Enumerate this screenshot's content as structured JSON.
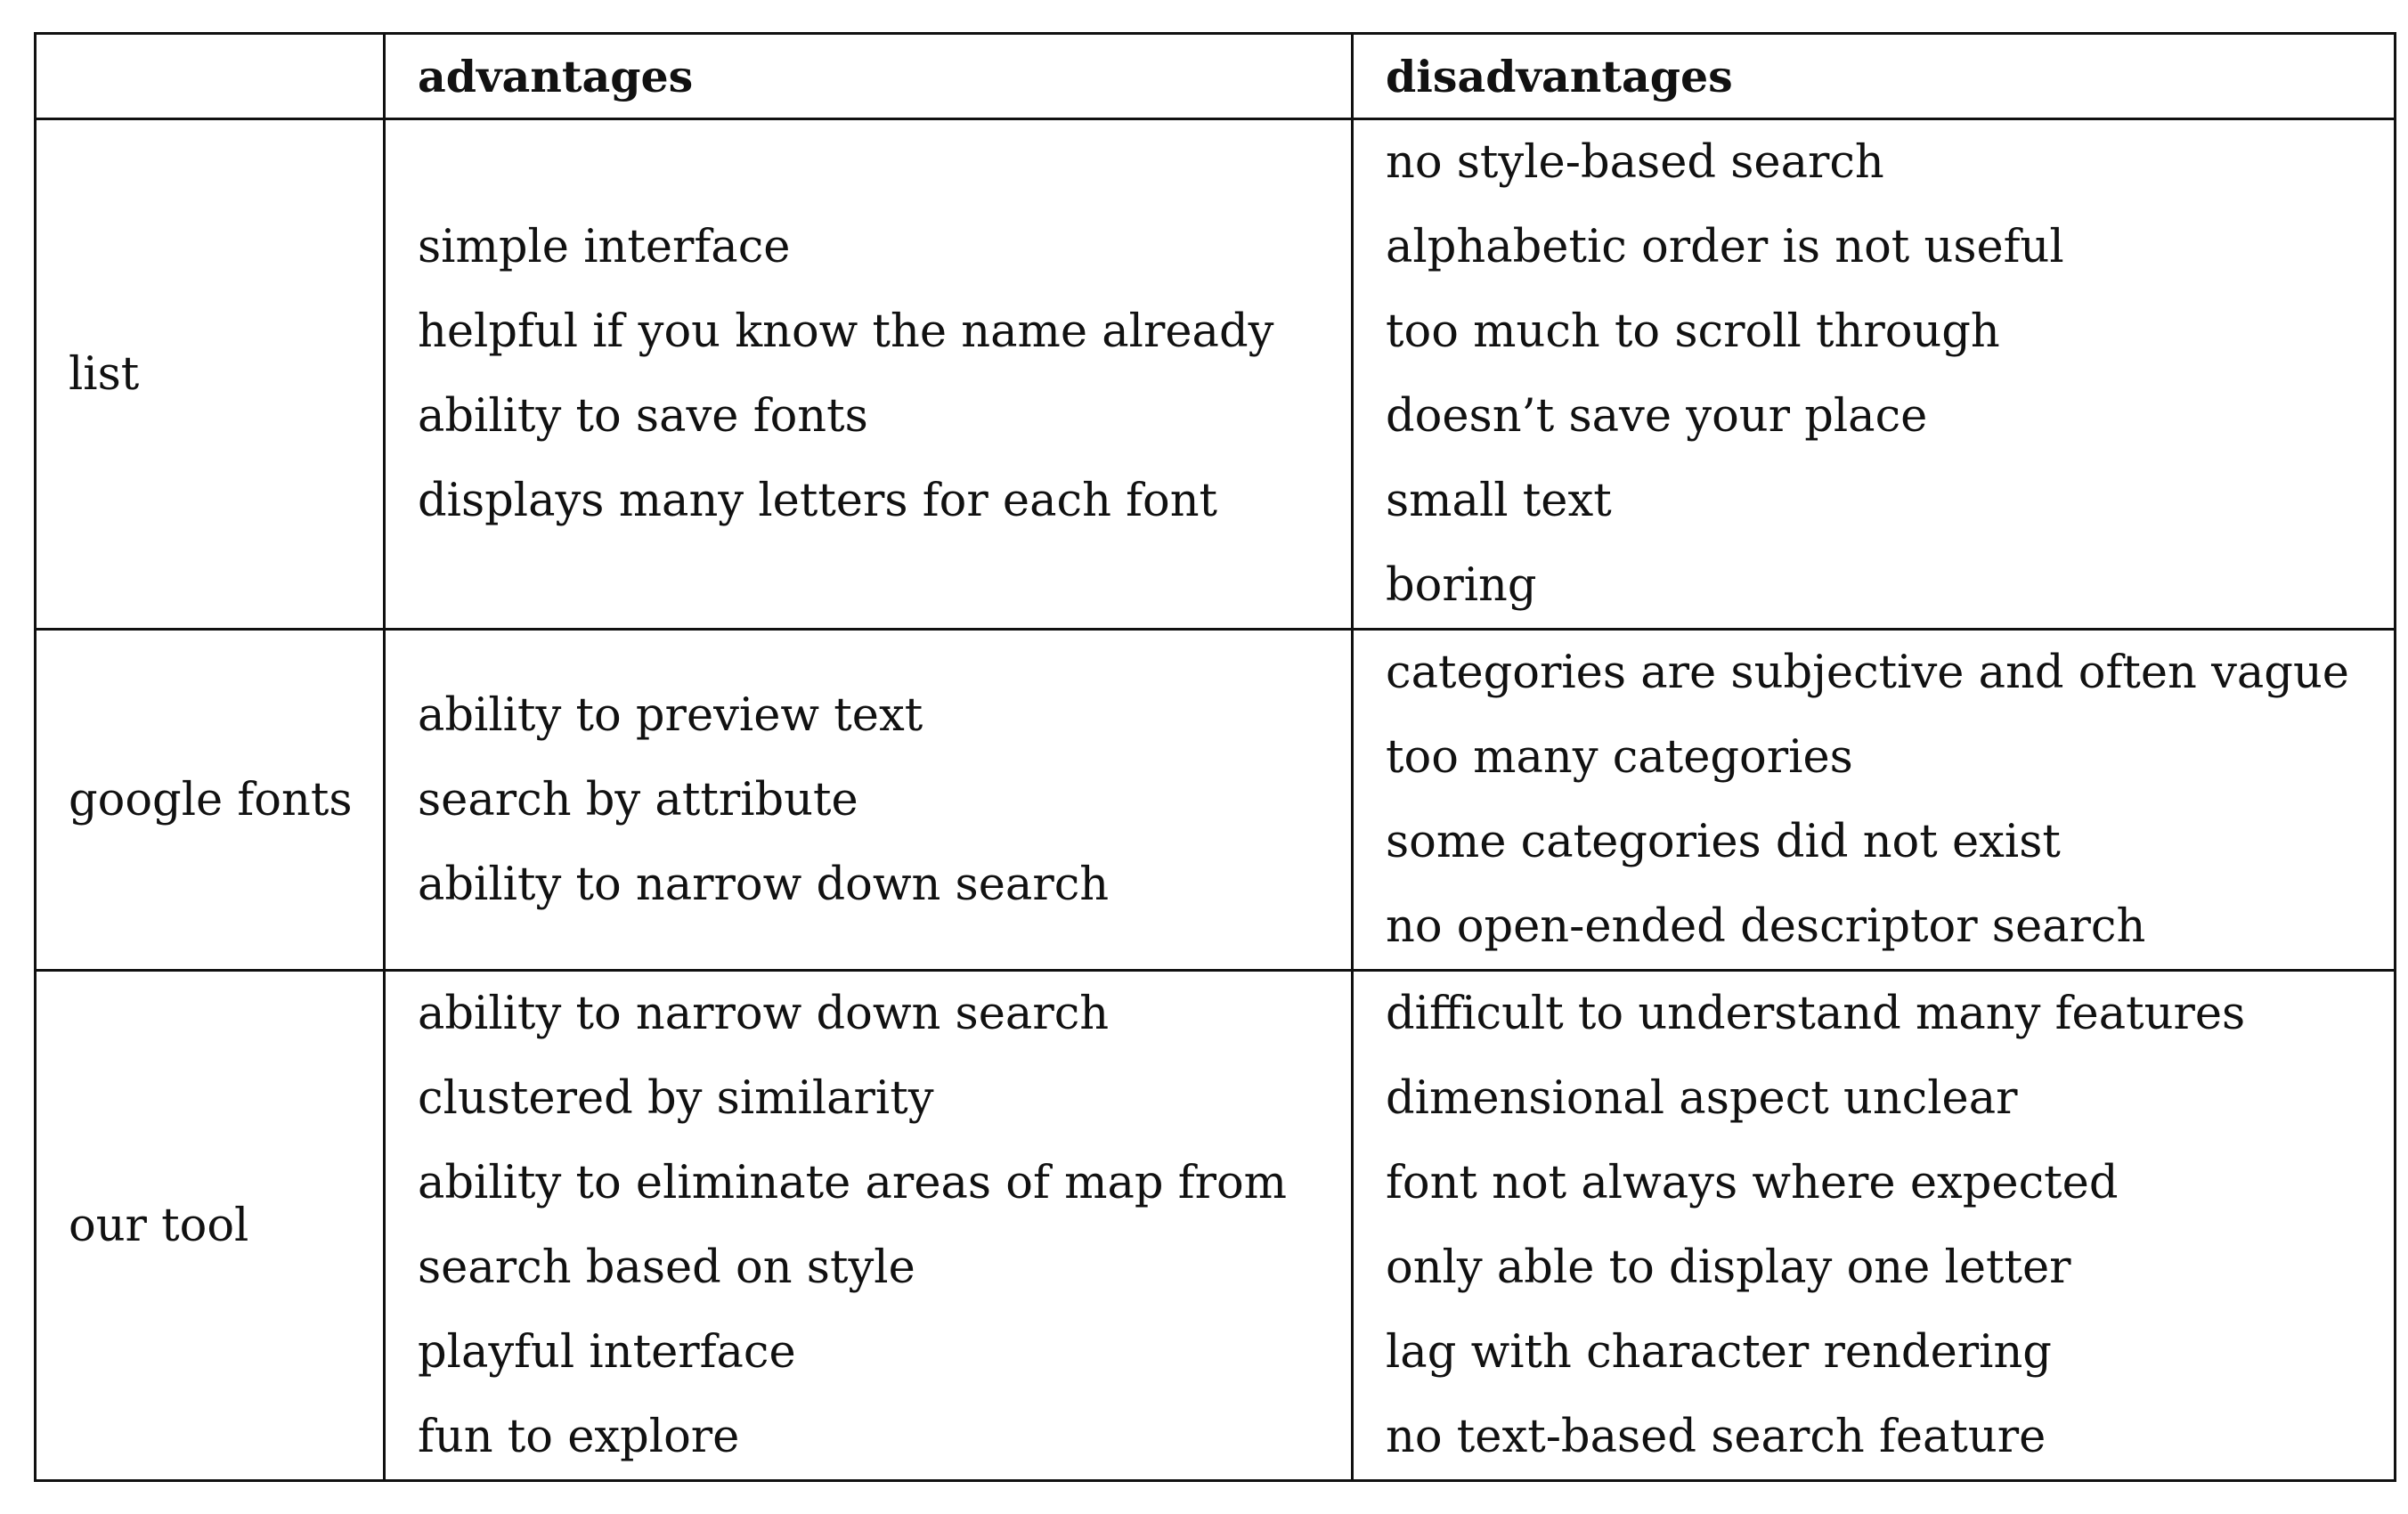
{
  "table": {
    "headers": [
      "",
      "advantages",
      "disadvantages"
    ],
    "rows": [
      {
        "label": "list",
        "advantages": [
          "simple interface",
          "helpful if you know the name already",
          "ability to save fonts",
          "displays many letters for each font"
        ],
        "disadvantages": [
          "no style-based search",
          "alphabetic order is not useful",
          "too much to scroll through",
          "doesn’t save your place",
          "small text",
          "boring"
        ]
      },
      {
        "label": "google fonts",
        "advantages": [
          "ability to preview text",
          "search by attribute",
          "ability to narrow down search"
        ],
        "disadvantages": [
          "categories are subjective and often vague",
          "too many categories",
          "some categories did not exist",
          "no open-ended descriptor search"
        ]
      },
      {
        "label": "our tool",
        "advantages": [
          "ability to narrow down search",
          "clustered by similarity",
          "ability to eliminate areas of map from",
          "search based on style",
          "playful interface",
          "fun to explore"
        ],
        "disadvantages": [
          "difficult to understand many features",
          "dimensional aspect unclear",
          "font not always where expected",
          "only able to display one letter",
          "lag with character rendering",
          "no text-based search feature"
        ]
      }
    ]
  }
}
